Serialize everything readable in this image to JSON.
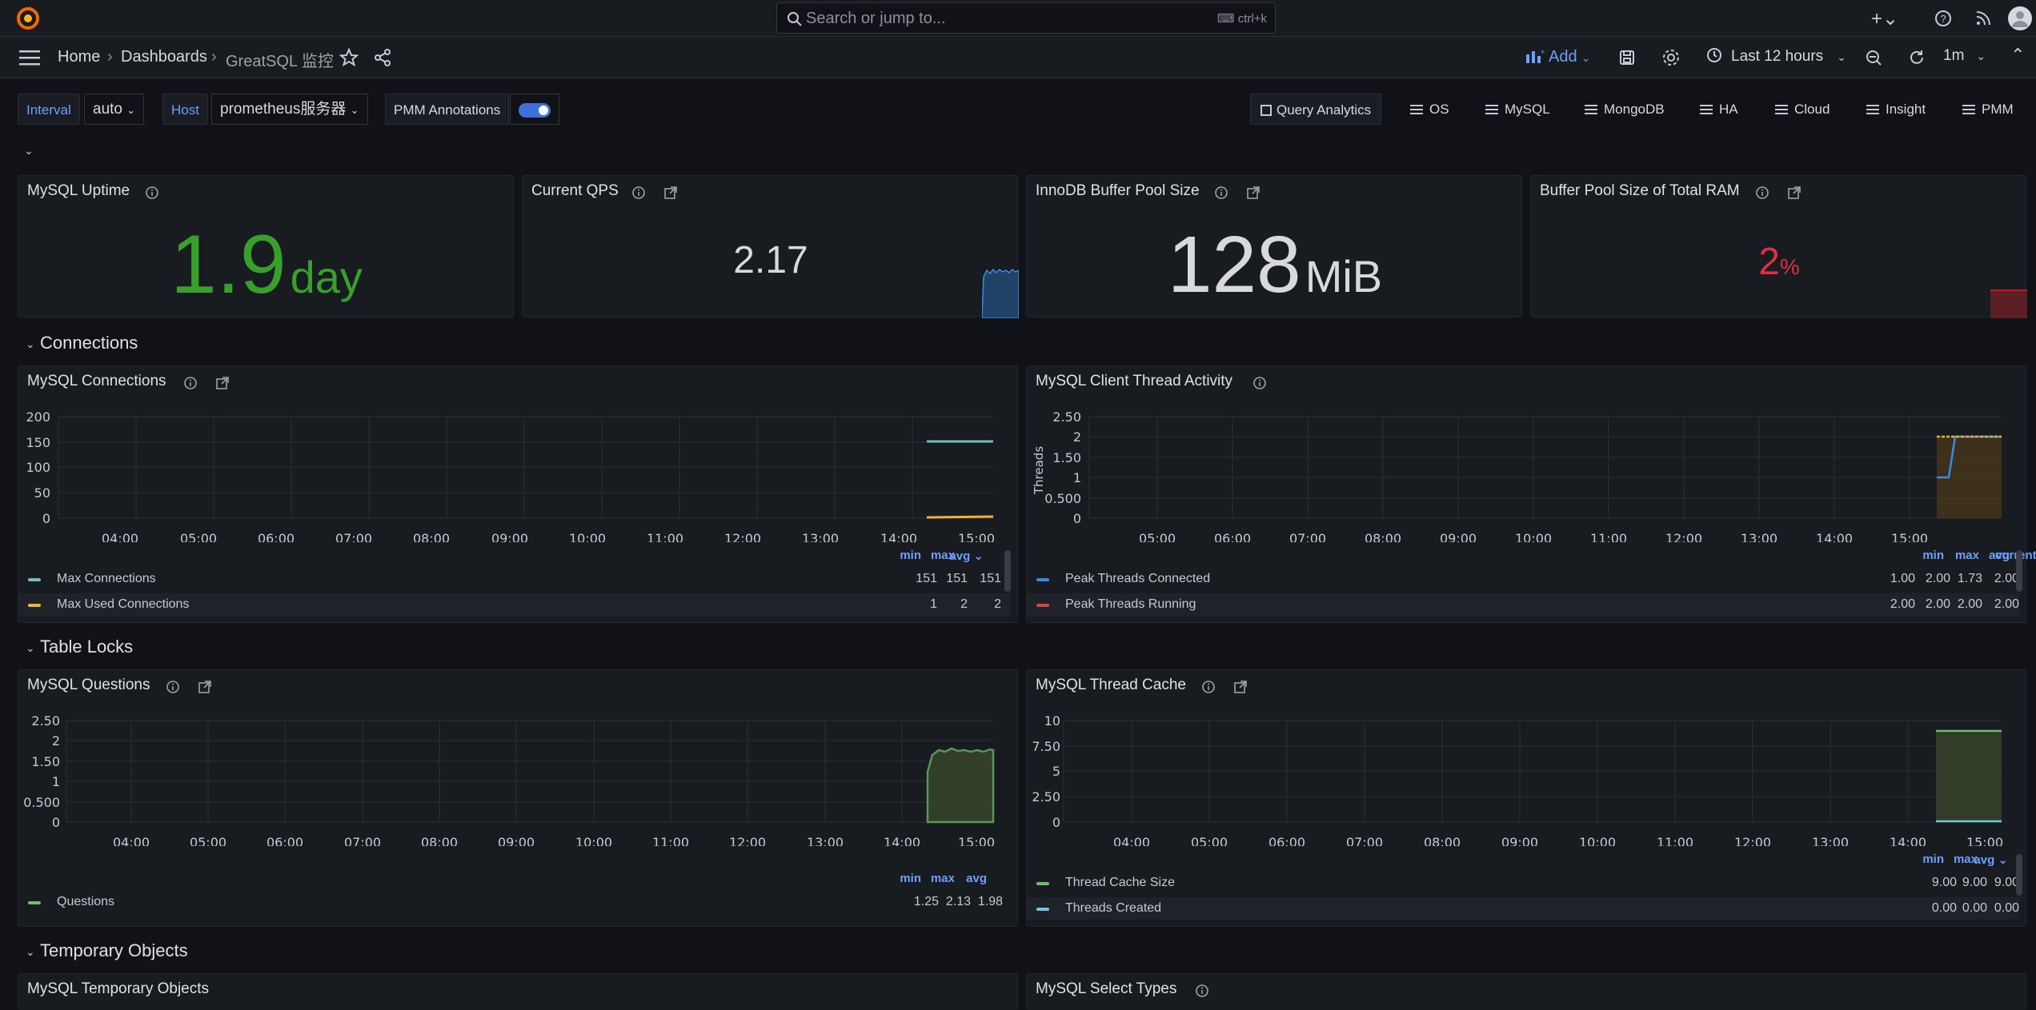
{
  "topbar": {
    "search_placeholder": "Search or jump to...",
    "search_shortcut": "ctrl+k"
  },
  "nav": {
    "crumbs": [
      "Home",
      "Dashboards",
      "GreatSQL 监控"
    ],
    "add_label": "Add",
    "time_range": "Last 12 hours",
    "refresh_interval": "1m"
  },
  "variables": {
    "interval_label": "Interval",
    "interval_value": "auto",
    "host_label": "Host",
    "host_value": "prometheus服务器",
    "annotations_label": "PMM Annotations",
    "annotations_enabled": true
  },
  "links": [
    "Query Analytics",
    "OS",
    "MySQL",
    "MongoDB",
    "HA",
    "Cloud",
    "Insight",
    "PMM"
  ],
  "rows": {
    "connections": "Connections",
    "table_locks": "Table Locks",
    "temporary_objects": "Temporary Objects"
  },
  "stats": {
    "uptime": {
      "title": "MySQL Uptime",
      "value": "1.9",
      "unit": "day",
      "color": "#37a02a"
    },
    "qps": {
      "title": "Current QPS",
      "value": "2.17",
      "color": "#d8d9df"
    },
    "buffer_pool": {
      "title": "InnoDB Buffer Pool Size",
      "value": "128",
      "unit": "MiB",
      "color": "#d8d9df"
    },
    "buffer_ratio": {
      "title": "Buffer Pool Size of Total RAM",
      "value": "2",
      "unit": "%",
      "color": "#e02f44"
    }
  },
  "time_ticks": [
    "04:00",
    "05:00",
    "06:00",
    "07:00",
    "08:00",
    "09:00",
    "10:00",
    "11:00",
    "12:00",
    "13:00",
    "14:00",
    "15:00"
  ],
  "panels": {
    "connections": {
      "title": "MySQL Connections",
      "y_ticks": [
        "200",
        "150",
        "100",
        "50",
        "0"
      ],
      "legend_headers": [
        "min",
        "max",
        "avg"
      ],
      "legend": [
        {
          "name": "Max Connections",
          "color": "#73bfb8",
          "values": [
            "151",
            "151",
            "151"
          ]
        },
        {
          "name": "Max Used Connections",
          "color": "#f2b134",
          "values": [
            "1",
            "2",
            "2"
          ]
        }
      ]
    },
    "client_threads": {
      "title": "MySQL Client Thread Activity",
      "y_label": "Threads",
      "y_ticks": [
        "2.50",
        "2",
        "1.50",
        "1",
        "0.500",
        "0"
      ],
      "legend_headers": [
        "min",
        "max",
        "avg",
        "current"
      ],
      "legend": [
        {
          "name": "Peak Threads Connected",
          "color": "#3a8be8",
          "values": [
            "1.00",
            "2.00",
            "1.73",
            "2.00"
          ]
        },
        {
          "name": "Peak Threads Running",
          "color": "#e23f3f",
          "values": [
            "2.00",
            "2.00",
            "2.00",
            "2.00"
          ]
        }
      ]
    },
    "questions": {
      "title": "MySQL Questions",
      "y_ticks": [
        "2.50",
        "2",
        "1.50",
        "1",
        "0.500",
        "0"
      ],
      "legend_headers": [
        "min",
        "max",
        "avg"
      ],
      "legend": [
        {
          "name": "Questions",
          "color": "#73bf69",
          "values": [
            "1.25",
            "2.13",
            "1.98"
          ]
        }
      ]
    },
    "thread_cache": {
      "title": "MySQL Thread Cache",
      "y_ticks": [
        "10",
        "7.50",
        "5",
        "2.50",
        "0"
      ],
      "legend_headers": [
        "min",
        "max",
        "avg"
      ],
      "legend": [
        {
          "name": "Thread Cache Size",
          "color": "#73bf69",
          "values": [
            "9.00",
            "9.00",
            "9.00"
          ]
        },
        {
          "name": "Threads Created",
          "color": "#6ccadc",
          "values": [
            "0.00",
            "0.00",
            "0.00"
          ]
        }
      ]
    },
    "temp_objects": {
      "title": "MySQL Temporary Objects"
    },
    "select_types": {
      "title": "MySQL Select Types"
    }
  }
}
